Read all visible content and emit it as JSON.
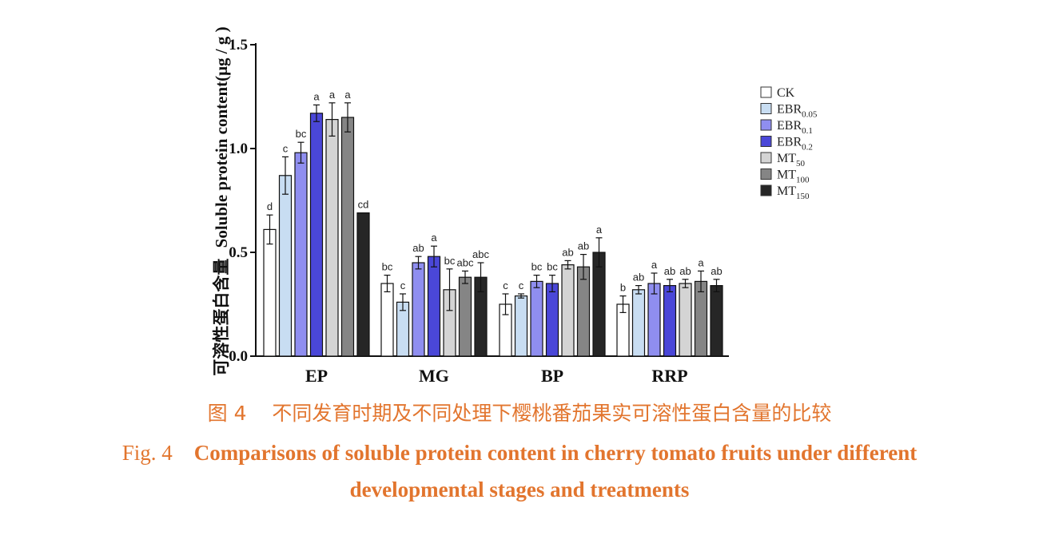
{
  "chart_data": {
    "type": "bar",
    "ylabel_cn": "可溶性蛋白含量",
    "ylabel": "Soluble protein content(μg / g )",
    "ylim": [
      0,
      1.5
    ],
    "yticks": [
      "0.0",
      "0.5",
      "1.0",
      "1.5"
    ],
    "categories": [
      "EP",
      "MG",
      "BP",
      "RRP"
    ],
    "legend_position": "right",
    "series": [
      {
        "name": "CK",
        "name_base": "CK",
        "name_sub": "",
        "color": "#ffffff",
        "values": [
          0.61,
          0.35,
          0.25,
          0.25
        ],
        "errors": [
          0.07,
          0.04,
          0.05,
          0.04
        ],
        "labels": [
          "d",
          "bc",
          "c",
          "b"
        ]
      },
      {
        "name": "EBR0.05",
        "name_base": "EBR",
        "name_sub": "0.05",
        "color": "#c8ddf2",
        "values": [
          0.87,
          0.26,
          0.29,
          0.32
        ],
        "errors": [
          0.09,
          0.04,
          0.01,
          0.02
        ],
        "labels": [
          "c",
          "c",
          "c",
          "ab"
        ]
      },
      {
        "name": "EBR0.1",
        "name_base": "EBR",
        "name_sub": "0.1",
        "color": "#8f8ef0",
        "values": [
          0.98,
          0.45,
          0.36,
          0.35
        ],
        "errors": [
          0.05,
          0.03,
          0.03,
          0.05
        ],
        "labels": [
          "bc",
          "ab",
          "bc",
          "a"
        ]
      },
      {
        "name": "EBR0.2",
        "name_base": "EBR",
        "name_sub": "0.2",
        "color": "#4a47d8",
        "values": [
          1.17,
          0.48,
          0.35,
          0.34
        ],
        "errors": [
          0.04,
          0.05,
          0.04,
          0.03
        ],
        "labels": [
          "a",
          "a",
          "bc",
          "ab"
        ]
      },
      {
        "name": "MT50",
        "name_base": "MT",
        "name_sub": "50",
        "color": "#d4d4d4",
        "values": [
          1.14,
          0.32,
          0.44,
          0.35
        ],
        "errors": [
          0.08,
          0.1,
          0.02,
          0.02
        ],
        "labels": [
          "a",
          "bc",
          "ab",
          "ab"
        ]
      },
      {
        "name": "MT100",
        "name_base": "MT",
        "name_sub": "100",
        "color": "#858585",
        "values": [
          1.15,
          0.38,
          0.43,
          0.36
        ],
        "errors": [
          0.07,
          0.03,
          0.06,
          0.05
        ],
        "labels": [
          "a",
          "abc",
          "ab",
          "a"
        ]
      },
      {
        "name": "MT150",
        "name_base": "MT",
        "name_sub": "150",
        "color": "#262626",
        "values": [
          0.69,
          0.38,
          0.5,
          0.34
        ],
        "errors": [
          0.0,
          0.07,
          0.07,
          0.03
        ],
        "labels": [
          "cd",
          "abc",
          "a",
          "ab"
        ]
      }
    ]
  },
  "caption": {
    "cn_prefix": "图 4",
    "cn_text": "不同发育时期及不同处理下樱桃番茄果实可溶性蛋白含量的比较",
    "en_prefix": "Fig. 4",
    "en_line1": "Comparisons of soluble protein content in cherry tomato fruits under different",
    "en_line2": "developmental stages and treatments"
  }
}
